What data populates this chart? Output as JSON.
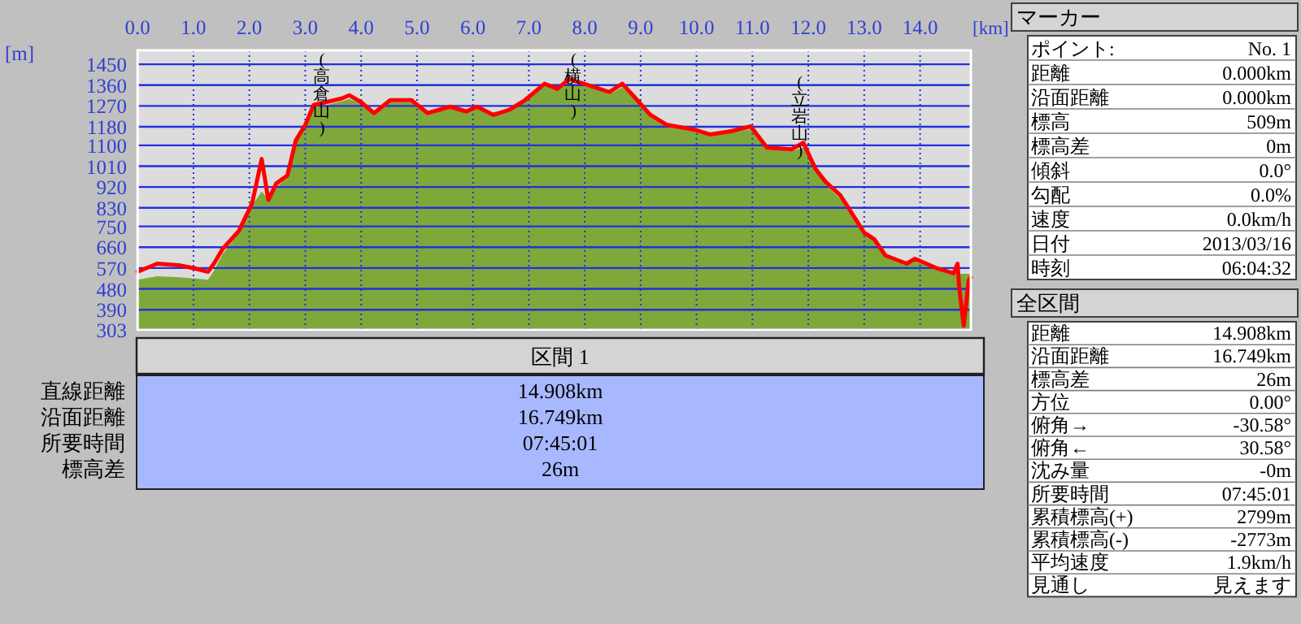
{
  "chart_data": [
    {
      "type": "line",
      "xlabel": "[km]",
      "ylabel": "[m]",
      "x": [
        0,
        0.35,
        0.74,
        1.03,
        1.26,
        1.37,
        1.52,
        1.81,
        2.05,
        2.22,
        2.34,
        2.48,
        2.68,
        2.83,
        3.0,
        3.15,
        3.65,
        3.79,
        3.99,
        4.23,
        4.52,
        4.9,
        5.19,
        5.59,
        5.88,
        6.07,
        6.36,
        6.47,
        6.65,
        6.93,
        7.28,
        7.51,
        7.72,
        8.09,
        8.44,
        8.67,
        8.94,
        9.17,
        9.46,
        9.95,
        10.24,
        10.62,
        10.97,
        11.26,
        11.7,
        11.91,
        12.13,
        12.31,
        12.57,
        12.72,
        13.0,
        13.18,
        13.38,
        13.76,
        13.91,
        14.31,
        14.6,
        14.67,
        14.7,
        14.78,
        14.87,
        14.908
      ],
      "series": [
        {
          "type": "area",
          "color": "#7fa83a",
          "values": [
            520,
            535,
            530,
            525,
            520,
            560,
            630,
            720,
            840,
            900,
            870,
            920,
            960,
            1110,
            1180,
            1260,
            1290,
            1300,
            1280,
            1230,
            1285,
            1285,
            1230,
            1260,
            1240,
            1260,
            1225,
            1230,
            1245,
            1290,
            1360,
            1340,
            1370,
            1350,
            1320,
            1350,
            1290,
            1225,
            1180,
            1160,
            1140,
            1155,
            1170,
            1085,
            1075,
            1090,
            990,
            930,
            870,
            815,
            715,
            685,
            615,
            580,
            600,
            560,
            540,
            545,
            545,
            545,
            545,
            545
          ]
        },
        {
          "type": "line",
          "color": "#ff0000",
          "values": [
            554,
            589,
            582,
            568,
            554,
            591,
            652,
            730,
            850,
            1041,
            864,
            935,
            970,
            1121,
            1188,
            1274,
            1302,
            1316,
            1288,
            1239,
            1295,
            1295,
            1239,
            1267,
            1246,
            1267,
            1232,
            1239,
            1253,
            1295,
            1366,
            1344,
            1386,
            1358,
            1330,
            1366,
            1295,
            1232,
            1189,
            1168,
            1147,
            1161,
            1182,
            1090,
            1083,
            1111,
            998,
            942,
            885,
            829,
            723,
            695,
            624,
            589,
            610,
            568,
            547,
            589,
            483,
            321,
            518,
            530
          ]
        }
      ],
      "xlim": [
        0,
        14.908
      ],
      "ylim": [
        303,
        1510
      ],
      "xticks": [
        {
          "value": 0,
          "label": "0.0"
        },
        {
          "value": 1,
          "label": "1.0"
        },
        {
          "value": 2,
          "label": "2.0"
        },
        {
          "value": 3,
          "label": "3.0"
        },
        {
          "value": 4,
          "label": "4.0"
        },
        {
          "value": 5,
          "label": "5.0"
        },
        {
          "value": 6,
          "label": "6.0"
        },
        {
          "value": 7,
          "label": "7.0"
        },
        {
          "value": 8,
          "label": "8.0"
        },
        {
          "value": 9,
          "label": "9.0"
        },
        {
          "value": 10,
          "label": "10.0"
        },
        {
          "value": 11,
          "label": "11.0"
        },
        {
          "value": 12,
          "label": "12.0"
        },
        {
          "value": 13,
          "label": "13.0"
        },
        {
          "value": 14,
          "label": "14.0"
        }
      ],
      "yticks": [
        303,
        390,
        480,
        570,
        660,
        750,
        830,
        920,
        1010,
        1100,
        1180,
        1270,
        1360,
        1450
      ],
      "grid": true,
      "annotations": [
        {
          "text": "(高倉山)",
          "x": 3.3,
          "y": 1280
        },
        {
          "text": "(横山)",
          "x": 7.8,
          "y": 1380
        },
        {
          "text": "(立岩山)",
          "x": 11.85,
          "y": 1110
        }
      ]
    },
    {
      "type": "other",
      "title": "マーカー",
      "annotations": [
        "ポイント:",
        "No. 1",
        "距離",
        "0.000km",
        "沿面距離",
        "0.000km",
        "標高",
        "509m",
        "標高差",
        "0m",
        "傾斜",
        "0.0°",
        "勾配",
        "0.0%",
        "速度",
        "0.0km/h",
        "日付",
        "2013/03/16",
        "時刻",
        "06:04:32"
      ]
    },
    {
      "type": "other",
      "title": "全区間",
      "annotations": [
        "距離",
        "14.908km",
        "沿面距離",
        "16.749km",
        "標高差",
        "26m",
        "方位",
        "0.00°",
        "俯角→",
        "-30.58°",
        "俯角←",
        "30.58°",
        "沈み量",
        "-0m",
        "所要時間",
        "07:45:01",
        "累積標高(+)",
        "2799m",
        "累積標高(-)",
        "-2773m",
        "平均速度",
        "1.9km/h",
        "見通し",
        "見えます"
      ]
    },
    {
      "type": "other",
      "title": "区間 1",
      "annotations": [
        "直線距離",
        "14.908km",
        "沿面距離",
        "16.749km",
        "所要時間",
        "07:45:01",
        "標高差",
        "26m"
      ]
    }
  ]
}
